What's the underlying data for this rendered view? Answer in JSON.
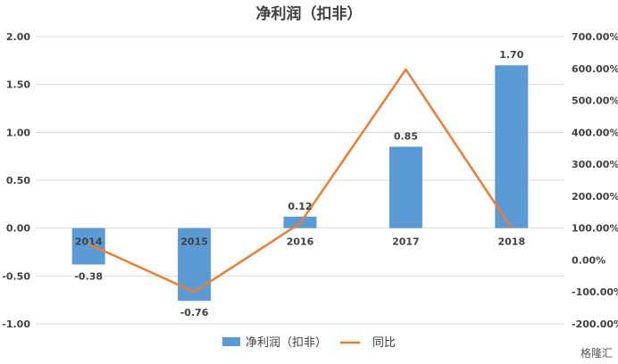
{
  "chart_data": {
    "type": "bar",
    "title": "净利润（扣非）",
    "categories": [
      "2014",
      "2015",
      "2016",
      "2017",
      "2018"
    ],
    "series": [
      {
        "name": "净利润（扣非）",
        "type": "bar",
        "axis": "left",
        "values": [
          -0.38,
          -0.76,
          0.12,
          0.85,
          1.7
        ],
        "labels": [
          "-0.38",
          "-0.76",
          "0.12",
          "0.85",
          "1.70"
        ]
      },
      {
        "name": "同比",
        "type": "line",
        "axis": "right",
        "values": [
          50,
          -100,
          115,
          597,
          100
        ]
      }
    ],
    "y_left": {
      "min": -1.0,
      "max": 2.0,
      "step": 0.5,
      "ticks": [
        "2.00",
        "1.50",
        "1.00",
        "0.50",
        "0.00",
        "-0.50",
        "-1.00"
      ]
    },
    "y_right": {
      "min": -200,
      "max": 700,
      "step": 100,
      "ticks": [
        "700.00%",
        "600.00%",
        "500.00%",
        "400.00%",
        "300.00%",
        "200.00%",
        "100.00%",
        "0.00%",
        "-100.00%",
        "-200.00%"
      ]
    },
    "grid": true,
    "legend": "bottom",
    "colors": {
      "bar": "#5B9BD5",
      "line": "#ED7D31",
      "grid": "#D9D9D9",
      "text": "#404040"
    }
  },
  "watermark": "格隆汇"
}
